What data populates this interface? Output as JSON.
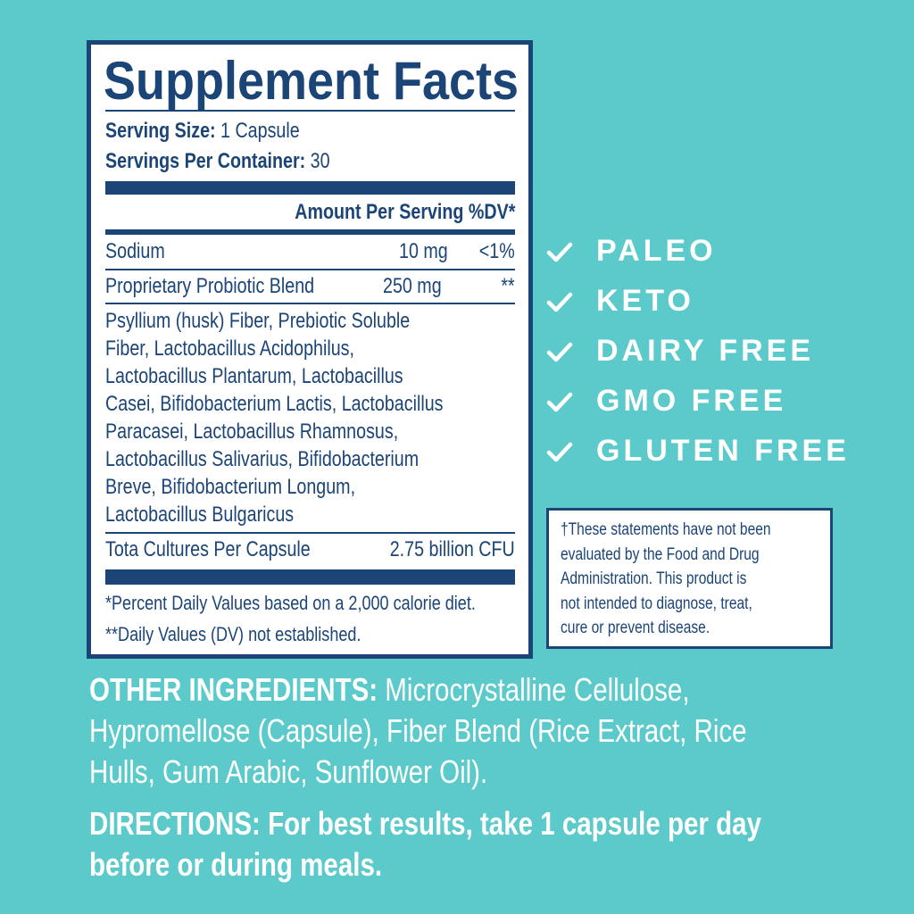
{
  "facts": {
    "title": "Supplement Facts",
    "serving_size_label": "Serving Size:",
    "serving_size_value": " 1 Capsule",
    "servings_label": "Servings Per Container:",
    "servings_value": " 30",
    "amount_header": "Amount Per Serving %DV*",
    "rows": [
      {
        "name": "Sodium",
        "amount": "10 mg",
        "dv": "<1%"
      },
      {
        "name": "Proprietary Probiotic Blend",
        "amount": "250 mg",
        "dv": "**"
      }
    ],
    "ingredients_lines": [
      "Psyllium (husk) Fiber, Prebiotic Soluble",
      "Fiber, Lactobacillus Acidophilus,",
      "Lactobacillus Plantarum, Lactobacillus",
      "Casei, Bifidobacterium Lactis, Lactobacillus",
      "Paracasei, Lactobacillus Rhamnosus,",
      "Lactobacillus Salivarius, Bifidobacterium",
      "Breve, Bifidobacterium Longum,",
      "Lactobacillus Bulgaricus"
    ],
    "cultures_label": "Tota Cultures Per Capsule",
    "cultures_value": "2.75 billion CFU",
    "footnote_1": "*Percent Daily Values based on a 2,000 calorie diet.",
    "footnote_2": "**Daily Values (DV) not established."
  },
  "claims": [
    {
      "icon": "check-icon",
      "label": "PALEO"
    },
    {
      "icon": "check-icon",
      "label": "KETO"
    },
    {
      "icon": "check-icon",
      "label": "DAIRY FREE"
    },
    {
      "icon": "check-icon",
      "label": "GMO FREE"
    },
    {
      "icon": "check-icon",
      "label": "GLUTEN FREE"
    }
  ],
  "disclaimer_lines": [
    "†These statements have not been",
    "evaluated by the Food and Drug",
    "Administration. This product is",
    "not intended to diagnose, treat,",
    "cure or prevent disease."
  ],
  "other_ingredients": {
    "label": "OTHER INGREDIENTS:",
    "lines": [
      " Microcrystalline Cellulose,",
      "Hypromellose (Capsule), Fiber Blend (Rice Extract, Rice",
      "Hulls, Gum Arabic, Sunflower Oil)."
    ]
  },
  "directions": {
    "lines": [
      "DIRECTIONS: For best results, take 1 capsule per day",
      "before or during meals."
    ]
  },
  "colors": {
    "background": "#5ccaca",
    "navy": "#1b4477",
    "white": "#ffffff"
  }
}
